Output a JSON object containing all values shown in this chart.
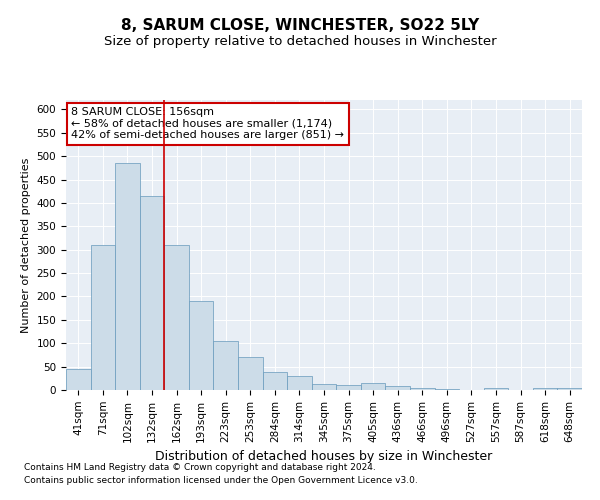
{
  "title": "8, SARUM CLOSE, WINCHESTER, SO22 5LY",
  "subtitle": "Size of property relative to detached houses in Winchester",
  "xlabel": "Distribution of detached houses by size in Winchester",
  "ylabel": "Number of detached properties",
  "categories": [
    "41sqm",
    "71sqm",
    "102sqm",
    "132sqm",
    "162sqm",
    "193sqm",
    "223sqm",
    "253sqm",
    "284sqm",
    "314sqm",
    "345sqm",
    "375sqm",
    "405sqm",
    "436sqm",
    "466sqm",
    "496sqm",
    "527sqm",
    "557sqm",
    "587sqm",
    "618sqm",
    "648sqm"
  ],
  "values": [
    45,
    310,
    485,
    415,
    310,
    190,
    105,
    70,
    38,
    30,
    12,
    10,
    15,
    8,
    5,
    3,
    0,
    5,
    0,
    5,
    5
  ],
  "bar_color": "#ccdce8",
  "bar_edge_color": "#6699bb",
  "ylim": [
    0,
    620
  ],
  "yticks": [
    0,
    50,
    100,
    150,
    200,
    250,
    300,
    350,
    400,
    450,
    500,
    550,
    600
  ],
  "vline_x": 3.5,
  "vline_color": "#cc0000",
  "annotation_text": "8 SARUM CLOSE: 156sqm\n← 58% of detached houses are smaller (1,174)\n42% of semi-detached houses are larger (851) →",
  "annotation_box_color": "#ffffff",
  "annotation_box_edge": "#cc0000",
  "footnote1": "Contains HM Land Registry data © Crown copyright and database right 2024.",
  "footnote2": "Contains public sector information licensed under the Open Government Licence v3.0.",
  "plot_bg_color": "#e8eef5",
  "title_fontsize": 11,
  "subtitle_fontsize": 9.5,
  "xlabel_fontsize": 9,
  "ylabel_fontsize": 8,
  "tick_fontsize": 7.5,
  "annotation_fontsize": 8,
  "footnote_fontsize": 6.5
}
